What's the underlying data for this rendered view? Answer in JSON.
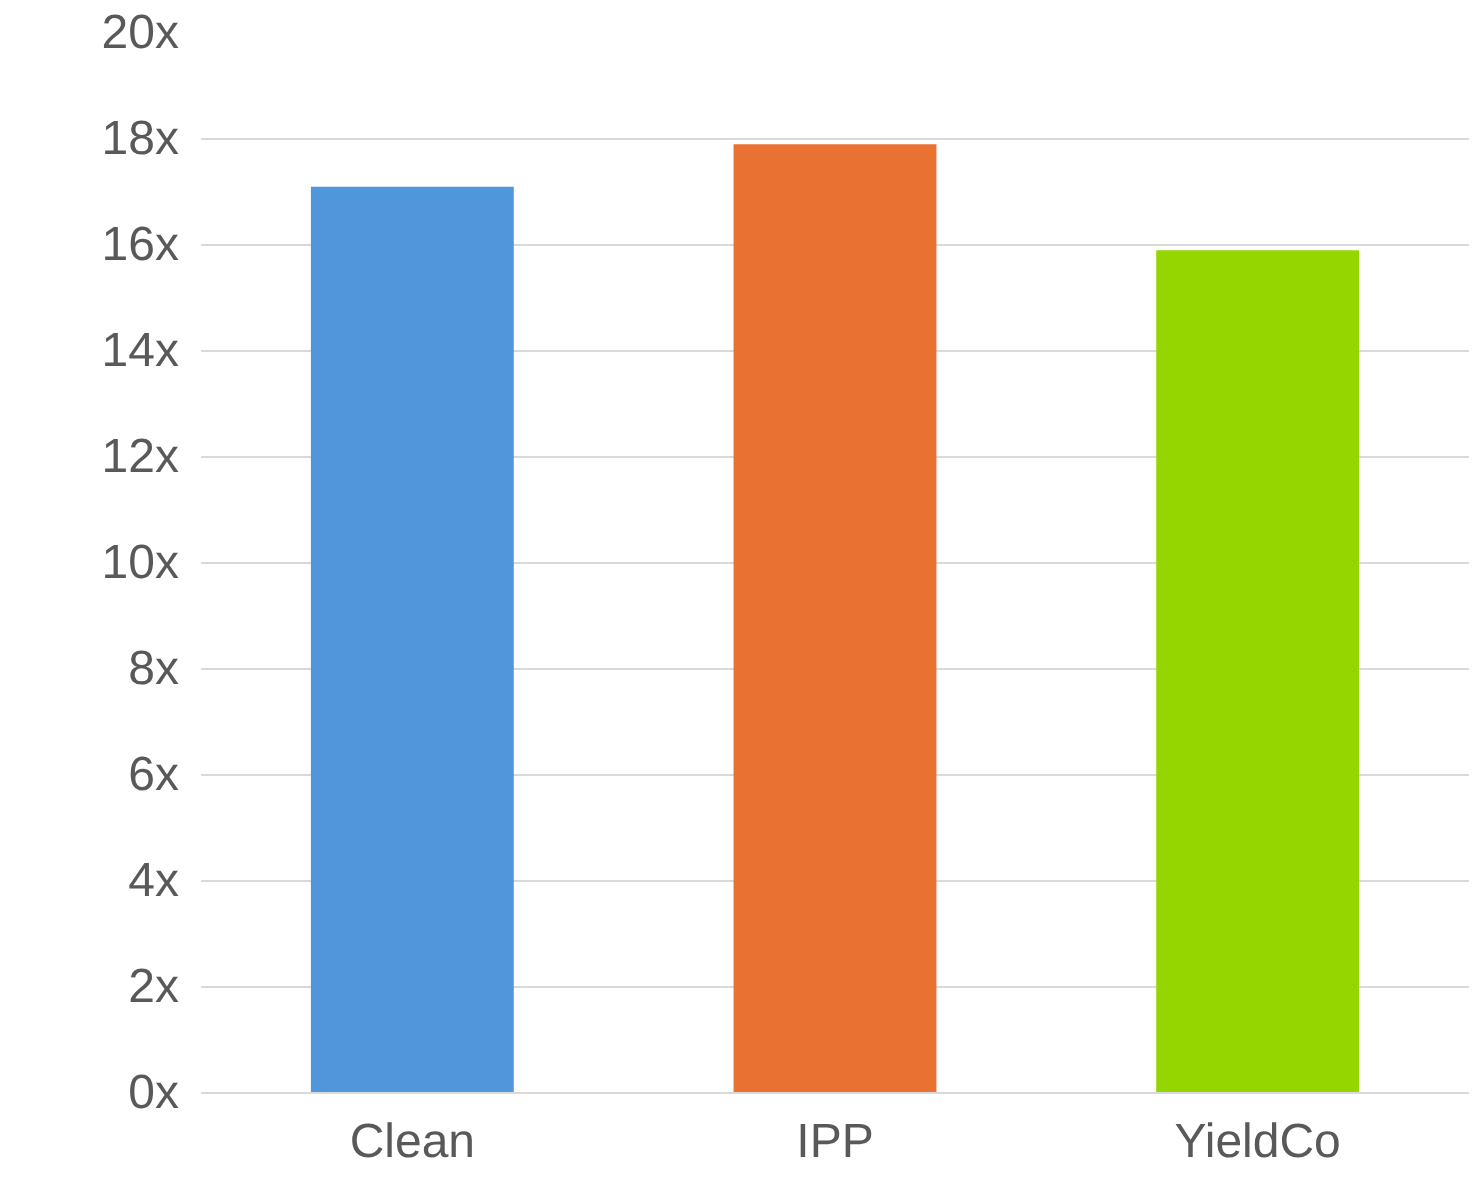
{
  "chart_data": {
    "type": "bar",
    "categories": [
      "Clean",
      "IPP",
      "YieldCo"
    ],
    "values": [
      17.1,
      17.9,
      15.9
    ],
    "colors": [
      "#4f96db",
      "#e97132",
      "#95d600"
    ],
    "ylim": [
      0,
      20
    ],
    "yticks": [
      {
        "value": 0,
        "label": "0x"
      },
      {
        "value": 2,
        "label": "2x"
      },
      {
        "value": 4,
        "label": "4x"
      },
      {
        "value": 6,
        "label": "6x"
      },
      {
        "value": 8,
        "label": "8x"
      },
      {
        "value": 10,
        "label": "10x"
      },
      {
        "value": 12,
        "label": "12x"
      },
      {
        "value": 14,
        "label": "14x"
      },
      {
        "value": 16,
        "label": "16x"
      },
      {
        "value": 18,
        "label": "18x"
      },
      {
        "value": 20,
        "label": "20x"
      }
    ],
    "grid": "y"
  }
}
